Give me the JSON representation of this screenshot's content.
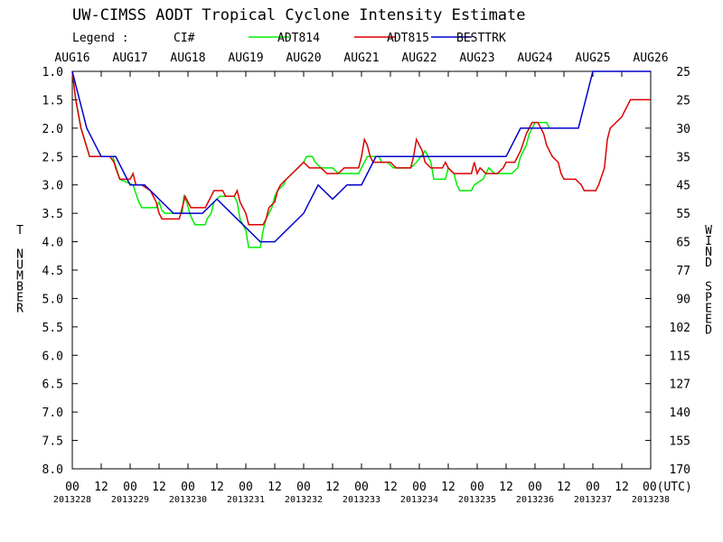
{
  "chart_data": {
    "type": "line",
    "title": "UW-CIMSS AODT Tropical Cyclone Intensity Estimate",
    "legend_label": "Legend :",
    "legend_ci": "CI#",
    "legend_placement": "top",
    "ylabel_left": "T NUMBER",
    "ylabel_right": "WIND SPEED",
    "xlim": [
      0,
      10
    ],
    "ylim": [
      1.0,
      8.0
    ],
    "y_inverted": true,
    "grid": false,
    "date_labels": [
      "AUG16",
      "AUG17",
      "AUG18",
      "AUG19",
      "AUG20",
      "AUG21",
      "AUG22",
      "AUG23",
      "AUG24",
      "AUG25",
      "AUG26"
    ],
    "hour_labels": [
      "00",
      "12",
      "00",
      "12",
      "00",
      "12",
      "00",
      "12",
      "00",
      "12",
      "00",
      "12",
      "00",
      "12",
      "00",
      "12",
      "00",
      "12",
      "00",
      "12",
      "00(UTC)"
    ],
    "julian_labels": [
      "2013228",
      "2013229",
      "2013230",
      "2013231",
      "2013232",
      "2013233",
      "2013234",
      "2013235",
      "2013236",
      "2013237",
      "2013238"
    ],
    "y_ticks": [
      "1.0",
      "1.5",
      "2.0",
      "2.5",
      "3.0",
      "3.5",
      "4.0",
      "4.5",
      "5.0",
      "5.5",
      "6.0",
      "6.5",
      "7.0",
      "7.5",
      "8.0"
    ],
    "wind_ticks": [
      "25",
      "25",
      "30",
      "35",
      "45",
      "55",
      "65",
      "77",
      "90",
      "102",
      "115",
      "127",
      "140",
      "155",
      "170"
    ],
    "series": [
      {
        "name": "ADT814",
        "color": "#00ee00",
        "points": [
          [
            0,
            1.0
          ],
          [
            0.06,
            1.5
          ],
          [
            0.15,
            2.0
          ],
          [
            0.3,
            2.5
          ],
          [
            0.7,
            2.5
          ],
          [
            0.82,
            2.9
          ],
          [
            1.05,
            3.0
          ],
          [
            1.15,
            3.3
          ],
          [
            1.2,
            3.4
          ],
          [
            1.45,
            3.4
          ],
          [
            1.5,
            3.3
          ],
          [
            1.55,
            3.45
          ],
          [
            1.6,
            3.5
          ],
          [
            1.8,
            3.5
          ],
          [
            1.9,
            3.5
          ],
          [
            1.93,
            3.2
          ],
          [
            1.98,
            3.3
          ],
          [
            2.03,
            3.5
          ],
          [
            2.07,
            3.6
          ],
          [
            2.12,
            3.7
          ],
          [
            2.3,
            3.7
          ],
          [
            2.33,
            3.6
          ],
          [
            2.4,
            3.5
          ],
          [
            2.45,
            3.3
          ],
          [
            2.55,
            3.2
          ],
          [
            2.8,
            3.2
          ],
          [
            2.85,
            3.3
          ],
          [
            2.9,
            3.6
          ],
          [
            3.0,
            3.8
          ],
          [
            3.05,
            4.1
          ],
          [
            3.25,
            4.1
          ],
          [
            3.3,
            3.8
          ],
          [
            3.35,
            3.6
          ],
          [
            3.45,
            3.4
          ],
          [
            3.5,
            3.2
          ],
          [
            3.55,
            3.1
          ],
          [
            3.65,
            3.0
          ],
          [
            3.7,
            2.9
          ],
          [
            3.8,
            2.8
          ],
          [
            3.9,
            2.7
          ],
          [
            4.0,
            2.6
          ],
          [
            4.05,
            2.5
          ],
          [
            4.15,
            2.5
          ],
          [
            4.2,
            2.6
          ],
          [
            4.3,
            2.7
          ],
          [
            4.5,
            2.7
          ],
          [
            4.6,
            2.8
          ],
          [
            4.95,
            2.8
          ],
          [
            5.05,
            2.6
          ],
          [
            5.1,
            2.5
          ],
          [
            5.3,
            2.5
          ],
          [
            5.35,
            2.6
          ],
          [
            5.45,
            2.6
          ],
          [
            5.55,
            2.7
          ],
          [
            5.85,
            2.7
          ],
          [
            5.95,
            2.6
          ],
          [
            6.1,
            2.4
          ],
          [
            6.2,
            2.6
          ],
          [
            6.25,
            2.9
          ],
          [
            6.45,
            2.9
          ],
          [
            6.5,
            2.7
          ],
          [
            6.6,
            2.8
          ],
          [
            6.65,
            3.0
          ],
          [
            6.7,
            3.1
          ],
          [
            6.9,
            3.1
          ],
          [
            6.95,
            3.0
          ],
          [
            7.1,
            2.9
          ],
          [
            7.2,
            2.7
          ],
          [
            7.3,
            2.8
          ],
          [
            7.45,
            2.8
          ],
          [
            7.6,
            2.8
          ],
          [
            7.7,
            2.7
          ],
          [
            7.75,
            2.5
          ],
          [
            7.85,
            2.3
          ],
          [
            7.9,
            2.1
          ],
          [
            8.0,
            1.9
          ],
          [
            8.2,
            1.9
          ],
          [
            8.25,
            2.0
          ]
        ]
      },
      {
        "name": "ADT815",
        "color": "#dd0000",
        "points": [
          [
            0,
            1.0
          ],
          [
            0.06,
            1.5
          ],
          [
            0.15,
            2.0
          ],
          [
            0.3,
            2.5
          ],
          [
            0.65,
            2.5
          ],
          [
            0.72,
            2.6
          ],
          [
            0.75,
            2.7
          ],
          [
            0.82,
            2.9
          ],
          [
            1.0,
            2.9
          ],
          [
            1.05,
            2.8
          ],
          [
            1.1,
            3.0
          ],
          [
            1.2,
            3.0
          ],
          [
            1.35,
            3.1
          ],
          [
            1.45,
            3.3
          ],
          [
            1.5,
            3.5
          ],
          [
            1.55,
            3.6
          ],
          [
            1.85,
            3.6
          ],
          [
            1.9,
            3.4
          ],
          [
            1.95,
            3.2
          ],
          [
            2.0,
            3.3
          ],
          [
            2.05,
            3.4
          ],
          [
            2.3,
            3.4
          ],
          [
            2.35,
            3.3
          ],
          [
            2.4,
            3.2
          ],
          [
            2.45,
            3.1
          ],
          [
            2.6,
            3.1
          ],
          [
            2.65,
            3.2
          ],
          [
            2.8,
            3.2
          ],
          [
            2.85,
            3.1
          ],
          [
            2.9,
            3.3
          ],
          [
            3.0,
            3.5
          ],
          [
            3.05,
            3.7
          ],
          [
            3.3,
            3.7
          ],
          [
            3.35,
            3.6
          ],
          [
            3.4,
            3.4
          ],
          [
            3.5,
            3.3
          ],
          [
            3.55,
            3.1
          ],
          [
            3.6,
            3.0
          ],
          [
            3.7,
            2.9
          ],
          [
            3.8,
            2.8
          ],
          [
            3.9,
            2.7
          ],
          [
            4.0,
            2.6
          ],
          [
            4.1,
            2.7
          ],
          [
            4.3,
            2.7
          ],
          [
            4.4,
            2.8
          ],
          [
            4.6,
            2.8
          ],
          [
            4.7,
            2.7
          ],
          [
            4.95,
            2.7
          ],
          [
            5.0,
            2.5
          ],
          [
            5.05,
            2.2
          ],
          [
            5.1,
            2.3
          ],
          [
            5.15,
            2.5
          ],
          [
            5.2,
            2.6
          ],
          [
            5.5,
            2.6
          ],
          [
            5.6,
            2.7
          ],
          [
            5.85,
            2.7
          ],
          [
            5.9,
            2.5
          ],
          [
            5.95,
            2.2
          ],
          [
            6.05,
            2.4
          ],
          [
            6.1,
            2.6
          ],
          [
            6.2,
            2.7
          ],
          [
            6.4,
            2.7
          ],
          [
            6.45,
            2.6
          ],
          [
            6.5,
            2.7
          ],
          [
            6.6,
            2.8
          ],
          [
            6.9,
            2.8
          ],
          [
            6.95,
            2.6
          ],
          [
            7.0,
            2.8
          ],
          [
            7.05,
            2.7
          ],
          [
            7.15,
            2.8
          ],
          [
            7.35,
            2.8
          ],
          [
            7.45,
            2.7
          ],
          [
            7.5,
            2.6
          ],
          [
            7.65,
            2.6
          ],
          [
            7.75,
            2.4
          ],
          [
            7.85,
            2.1
          ],
          [
            7.95,
            1.9
          ],
          [
            8.05,
            1.9
          ],
          [
            8.15,
            2.1
          ],
          [
            8.2,
            2.3
          ],
          [
            8.3,
            2.5
          ],
          [
            8.4,
            2.6
          ],
          [
            8.45,
            2.8
          ],
          [
            8.5,
            2.9
          ],
          [
            8.7,
            2.9
          ],
          [
            8.8,
            3.0
          ],
          [
            8.85,
            3.1
          ],
          [
            9.05,
            3.1
          ],
          [
            9.1,
            3.0
          ],
          [
            9.2,
            2.7
          ],
          [
            9.25,
            2.2
          ],
          [
            9.3,
            2.0
          ],
          [
            9.4,
            1.9
          ],
          [
            9.5,
            1.8
          ],
          [
            9.55,
            1.7
          ],
          [
            9.6,
            1.6
          ],
          [
            9.65,
            1.5
          ],
          [
            10.0,
            1.5
          ]
        ]
      },
      {
        "name": "BESTTRK",
        "color": "#0000cc",
        "points": [
          [
            0,
            1.0
          ],
          [
            0.25,
            2.0
          ],
          [
            0.5,
            2.5
          ],
          [
            0.75,
            2.5
          ],
          [
            1.0,
            3.0
          ],
          [
            1.25,
            3.0
          ],
          [
            1.75,
            3.5
          ],
          [
            2.25,
            3.5
          ],
          [
            2.5,
            3.25
          ],
          [
            3.0,
            3.75
          ],
          [
            3.25,
            4.0
          ],
          [
            3.5,
            4.0
          ],
          [
            4.0,
            3.5
          ],
          [
            4.25,
            3.0
          ],
          [
            4.5,
            3.25
          ],
          [
            4.75,
            3.0
          ],
          [
            5.0,
            3.0
          ],
          [
            5.25,
            2.5
          ],
          [
            7.5,
            2.5
          ],
          [
            7.75,
            2.0
          ],
          [
            8.75,
            2.0
          ],
          [
            9.0,
            1.0
          ],
          [
            10.0,
            1.0
          ]
        ]
      }
    ]
  }
}
